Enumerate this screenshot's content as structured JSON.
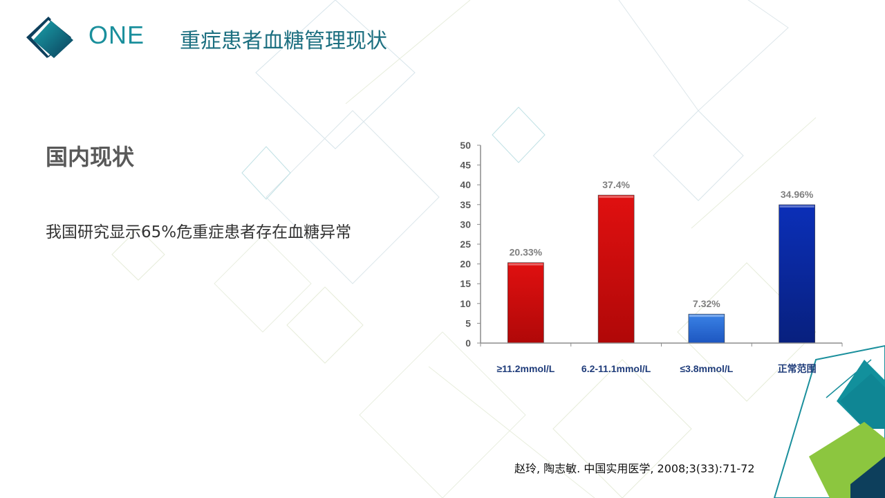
{
  "header": {
    "section_number": "ONE",
    "section_title": "重症患者血糖管理现状"
  },
  "content": {
    "subheading": "国内现状",
    "statement": "我国研究显示65%危重症患者存在血糖异常",
    "citation": "赵玲, 陶志敏. 中国实用医学, 2008;3(33):71-72"
  },
  "colors": {
    "accent_teal": "#1a8f9c",
    "title_teal": "#1c6f80",
    "bar_red": "#cc0a0a",
    "bar_light_blue": "#2c6fd6",
    "bar_dark_blue": "#0a2aa8",
    "deco_green": "#8cc63f"
  },
  "icons": {
    "header_logo": "diamond-logo-icon"
  },
  "chart_data": {
    "type": "bar",
    "categories": [
      "≥11.2mmol/L",
      "6.2-11.1mmol/L",
      "≤3.8mmol/L",
      "正常范围"
    ],
    "values": [
      20.33,
      37.4,
      7.32,
      34.96
    ],
    "data_labels": [
      "20.33%",
      "37.4%",
      "7.32%",
      "34.96%"
    ],
    "bar_colors": [
      "#cc0a0a",
      "#cc0a0a",
      "#2c6fd6",
      "#0a2aa8"
    ],
    "ylim": [
      0,
      50
    ],
    "yticks": [
      0,
      5,
      10,
      15,
      20,
      25,
      30,
      35,
      40,
      45,
      50
    ],
    "grid": false,
    "legend": "none",
    "title": "",
    "xlabel": "",
    "ylabel": ""
  }
}
